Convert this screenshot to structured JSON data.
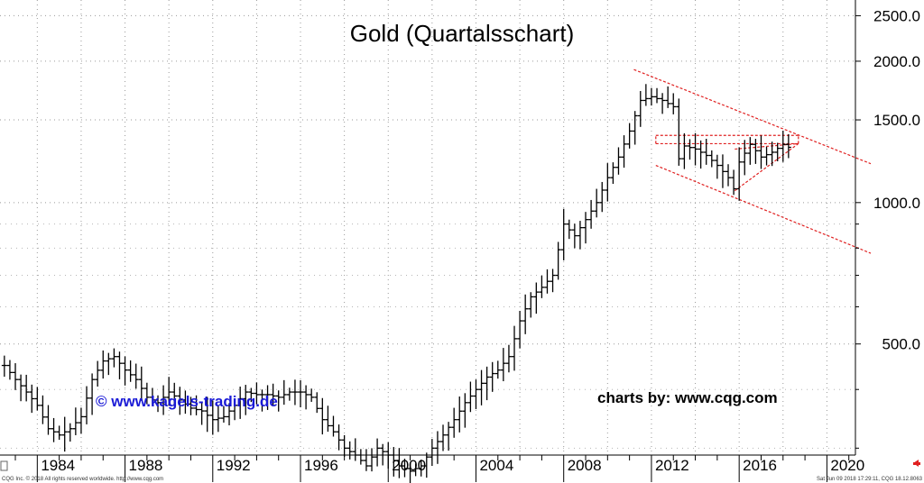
{
  "chart_data": {
    "type": "ohlc",
    "title": "Gold (Quartalsschart)",
    "y_scale": "log",
    "ylim": [
      290,
      2700
    ],
    "xlim": [
      1982.3,
      2021.3
    ],
    "yticks": [
      {
        "value": 2500,
        "label": "2500.0"
      },
      {
        "value": 2000,
        "label": "2000.0"
      },
      {
        "value": 1500,
        "label": "1500.0"
      },
      {
        "value": 1000,
        "label": "1000.0"
      },
      {
        "value": 500,
        "label": "500.0"
      }
    ],
    "xticks": [
      {
        "value": 1984,
        "label": "1984"
      },
      {
        "value": 1988,
        "label": "1988"
      },
      {
        "value": 1992,
        "label": "1992"
      },
      {
        "value": 1996,
        "label": "1996"
      },
      {
        "value": 2000,
        "label": "2000"
      },
      {
        "value": 2004,
        "label": "2004"
      },
      {
        "value": 2008,
        "label": "2008"
      },
      {
        "value": 2012,
        "label": "2012"
      },
      {
        "value": 2016,
        "label": "2016"
      },
      {
        "value": 2020,
        "label": "2020"
      }
    ],
    "grid": "dotted",
    "series_color": "#000000",
    "trendline_color": "#e02020",
    "anchors": [
      [
        1982.5,
        450
      ],
      [
        1983.0,
        420
      ],
      [
        1983.5,
        395
      ],
      [
        1984.0,
        370
      ],
      [
        1984.5,
        330
      ],
      [
        1985.0,
        320
      ],
      [
        1985.5,
        330
      ],
      [
        1986.0,
        350
      ],
      [
        1986.5,
        420
      ],
      [
        1987.0,
        460
      ],
      [
        1987.5,
        470
      ],
      [
        1988.0,
        440
      ],
      [
        1988.5,
        420
      ],
      [
        1989.0,
        385
      ],
      [
        1989.5,
        375
      ],
      [
        1990.0,
        395
      ],
      [
        1990.5,
        380
      ],
      [
        1991.0,
        365
      ],
      [
        1991.5,
        360
      ],
      [
        1992.0,
        345
      ],
      [
        1992.5,
        350
      ],
      [
        1993.0,
        370
      ],
      [
        1993.5,
        395
      ],
      [
        1994.0,
        390
      ],
      [
        1994.5,
        390
      ],
      [
        1995.0,
        385
      ],
      [
        1995.5,
        395
      ],
      [
        1996.0,
        395
      ],
      [
        1996.5,
        385
      ],
      [
        1997.0,
        345
      ],
      [
        1997.5,
        325
      ],
      [
        1998.0,
        300
      ],
      [
        1998.5,
        290
      ],
      [
        1999.0,
        275
      ],
      [
        1999.5,
        300
      ],
      [
        2000.0,
        290
      ],
      [
        2000.5,
        275
      ],
      [
        2001.0,
        268
      ],
      [
        2001.5,
        275
      ],
      [
        2002.0,
        300
      ],
      [
        2002.5,
        320
      ],
      [
        2003.0,
        345
      ],
      [
        2003.5,
        375
      ],
      [
        2004.0,
        400
      ],
      [
        2004.5,
        425
      ],
      [
        2005.0,
        440
      ],
      [
        2005.5,
        470
      ],
      [
        2006.0,
        560
      ],
      [
        2006.5,
        630
      ],
      [
        2007.0,
        660
      ],
      [
        2007.5,
        700
      ],
      [
        2008.0,
        900
      ],
      [
        2008.5,
        850
      ],
      [
        2009.0,
        920
      ],
      [
        2009.5,
        1000
      ],
      [
        2010.0,
        1130
      ],
      [
        2010.5,
        1250
      ],
      [
        2011.0,
        1420
      ],
      [
        2011.5,
        1650
      ],
      [
        2012.0,
        1680
      ],
      [
        2012.5,
        1650
      ],
      [
        2013.0,
        1600
      ],
      [
        2013.25,
        1240
      ],
      [
        2013.5,
        1320
      ],
      [
        2014.0,
        1300
      ],
      [
        2014.5,
        1260
      ],
      [
        2015.0,
        1200
      ],
      [
        2015.5,
        1130
      ],
      [
        2015.75,
        1070
      ],
      [
        2016.0,
        1220
      ],
      [
        2016.5,
        1330
      ],
      [
        2017.0,
        1250
      ],
      [
        2017.5,
        1280
      ],
      [
        2018.0,
        1330
      ],
      [
        2018.4,
        1300
      ]
    ],
    "trendlines": [
      {
        "points": [
          [
            2011.2,
            1920
          ],
          [
            2022.0,
            1210
          ]
        ],
        "style": "dashed"
      },
      {
        "points": [
          [
            2012.2,
            1200
          ],
          [
            2022.0,
            780
          ]
        ],
        "style": "dashed"
      },
      {
        "points": [
          [
            2012.2,
            1390
          ],
          [
            2018.7,
            1390
          ]
        ],
        "style": "dashed"
      },
      {
        "points": [
          [
            2012.2,
            1335
          ],
          [
            2018.7,
            1335
          ]
        ],
        "style": "dashed"
      },
      {
        "points": [
          [
            2012.2,
            1335
          ],
          [
            2012.2,
            1390
          ]
        ],
        "style": "dashed"
      },
      {
        "points": [
          [
            2018.7,
            1335
          ],
          [
            2018.7,
            1390
          ]
        ],
        "style": "dashed"
      },
      {
        "points": [
          [
            2015.8,
            1060
          ],
          [
            2018.7,
            1335
          ]
        ],
        "style": "dashed"
      },
      {
        "points": [
          [
            2015.8,
            1300
          ],
          [
            2018.7,
            1335
          ]
        ],
        "style": "dashed"
      }
    ]
  },
  "annotations": {
    "website": "© www.kagels-trading.de",
    "source": "charts by: www.cqg.com"
  },
  "footer": {
    "left": "CQG Inc. © 2018 All rights reserved worldwide. http://www.cqg.com",
    "right": "Sat Jun 09 2018 17:29:11, CQG 18.12.8063"
  }
}
